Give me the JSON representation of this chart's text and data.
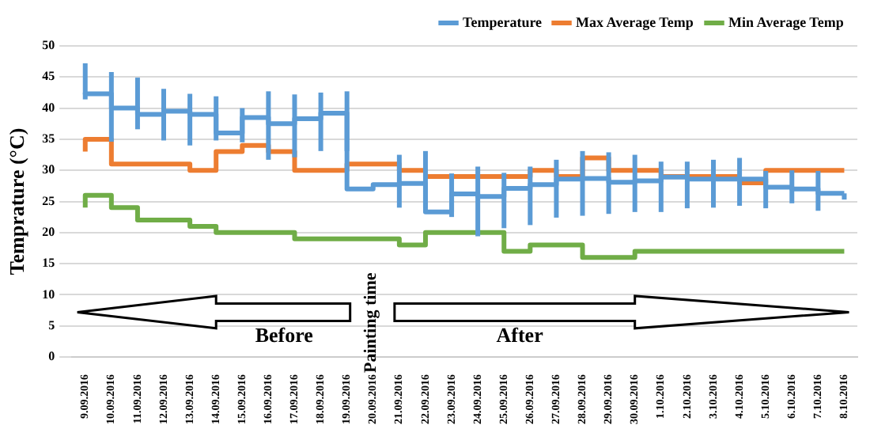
{
  "chart_data": {
    "type": "step",
    "ylabel": "Temprature (°C)",
    "categories": [
      "9.09.2016",
      "10.09.2016",
      "11.09.2016",
      "12.09.2016",
      "13.09.2016",
      "14.09.2016",
      "15.09.2016",
      "16.09.2016",
      "17.09.2016",
      "18.09.2016",
      "19.09.2016",
      "20.09.2016",
      "21.09.2016",
      "22.09.2016",
      "23.09.2016",
      "24.09.2016",
      "25.09.2016",
      "26.09.2016",
      "27.09.2016",
      "28.09.2016",
      "29.09.2016",
      "30.09.2016",
      "1.10.2016",
      "2.10.2016",
      "3.10.2016",
      "4.10.2016",
      "5.10.2016",
      "6.10.2016",
      "7.10.2016",
      "8.10.2016"
    ],
    "series": [
      {
        "name": "Temperature",
        "color": "#5b9bd5",
        "values": [
          42.5,
          42.3,
          40,
          39,
          39.5,
          39,
          36,
          38.5,
          37.5,
          38.3,
          39.2,
          27,
          27.7,
          27.9,
          23.3,
          26.2,
          25.8,
          27.1,
          27.7,
          28.6,
          28.7,
          28.1,
          28.3,
          28.9,
          28.6,
          28.6,
          28.6,
          27.3,
          27,
          26.3
        ],
        "errors": [
          [
            41.4,
            47.2
          ],
          [
            34.6,
            45.8
          ],
          [
            36.6,
            44.9
          ],
          [
            34.8,
            43.1
          ],
          [
            34,
            42.3
          ],
          [
            34.8,
            41.9
          ],
          [
            34.5,
            40
          ],
          [
            31.7,
            42.7
          ],
          [
            32.1,
            42.2
          ],
          [
            33.1,
            42.5
          ],
          [
            33.1,
            42.7
          ],
          null,
          [
            24,
            32.5
          ],
          [
            24,
            33.1
          ],
          [
            22.5,
            29.5
          ],
          [
            19.4,
            30.6
          ],
          [
            20.7,
            29.6
          ],
          [
            21.2,
            30.6
          ],
          [
            22.4,
            31.7
          ],
          [
            22.7,
            33.1
          ],
          [
            23,
            32.9
          ],
          [
            23.3,
            32.5
          ],
          [
            23.3,
            31.4
          ],
          [
            23.9,
            31.4
          ],
          [
            24,
            31.7
          ],
          [
            24.3,
            32
          ],
          [
            23.9,
            29.9
          ],
          [
            24.7,
            30
          ],
          [
            23.5,
            29.9
          ],
          [
            25.3,
            26.3
          ]
        ]
      },
      {
        "name": "Max Average Temp",
        "color": "#ed7d31",
        "values": [
          33,
          35,
          31,
          31,
          31,
          30,
          33,
          34,
          33,
          30,
          30,
          31,
          31,
          30,
          29,
          29,
          29,
          29,
          30,
          29,
          32,
          30,
          30,
          29,
          29,
          29,
          28,
          30,
          30,
          30
        ]
      },
      {
        "name": "Min Average Temp",
        "color": "#70ad47",
        "values": [
          24,
          26,
          24,
          22,
          22,
          21,
          20,
          20,
          20,
          19,
          19,
          19,
          19,
          18,
          20,
          20,
          20,
          17,
          18,
          18,
          16,
          16,
          17,
          17,
          17,
          17,
          17,
          17,
          17,
          17
        ]
      }
    ],
    "ylim": [
      0,
      50
    ],
    "yticks": [
      0,
      5,
      10,
      15,
      20,
      25,
      30,
      35,
      40,
      45,
      50
    ],
    "grid": "y",
    "legend": "top right",
    "marker": "none",
    "line_style": "solid",
    "annotations": [
      "Before",
      "After",
      "Painting time"
    ]
  }
}
